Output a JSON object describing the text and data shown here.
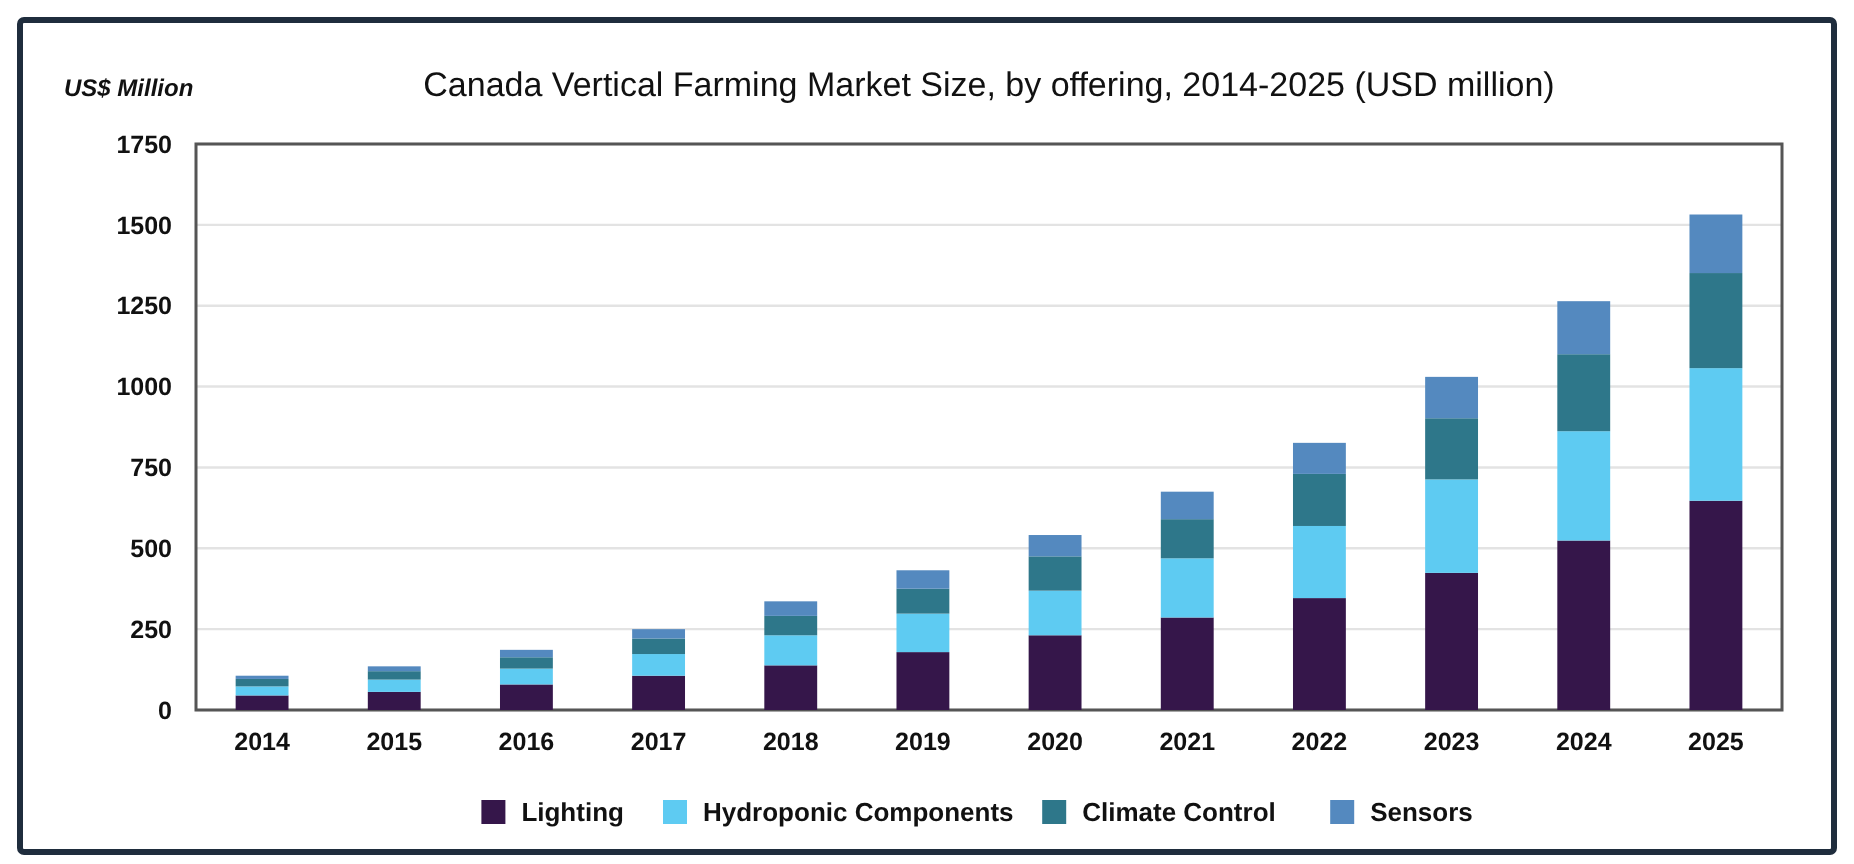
{
  "chart_data": {
    "type": "bar",
    "title": "Canada Vertical Farming Market Size, by offering, 2014-2025 (USD million)",
    "ylabel": "US$ Million",
    "categories": [
      "2014",
      "2015",
      "2016",
      "2017",
      "2018",
      "2019",
      "2020",
      "2021",
      "2022",
      "2023",
      "2024",
      "2025"
    ],
    "stacked": true,
    "ylim": [
      0,
      1750
    ],
    "yticks": [
      0,
      250,
      500,
      750,
      1000,
      1250,
      1500,
      1750
    ],
    "grid": "y",
    "legend": "bottom",
    "series": [
      {
        "name": "Lighting",
        "color": "#35164a",
        "values": [
          45,
          56,
          79,
          106,
          138,
          179,
          231,
          286,
          346,
          424,
          524,
          647
        ]
      },
      {
        "name": "Hydroponic Components",
        "color": "#5ecbf2",
        "values": [
          28,
          38,
          49,
          67,
          93,
          119,
          138,
          183,
          223,
          289,
          338,
          410
        ]
      },
      {
        "name": "Climate Control",
        "color": "#2e778a",
        "values": [
          23,
          26,
          35,
          48,
          60,
          77,
          106,
          121,
          161,
          189,
          238,
          294
        ]
      },
      {
        "name": "Sensors",
        "color": "#5489bf",
        "values": [
          10,
          15,
          23,
          29,
          45,
          57,
          66,
          85,
          96,
          128,
          164,
          181
        ]
      }
    ]
  }
}
